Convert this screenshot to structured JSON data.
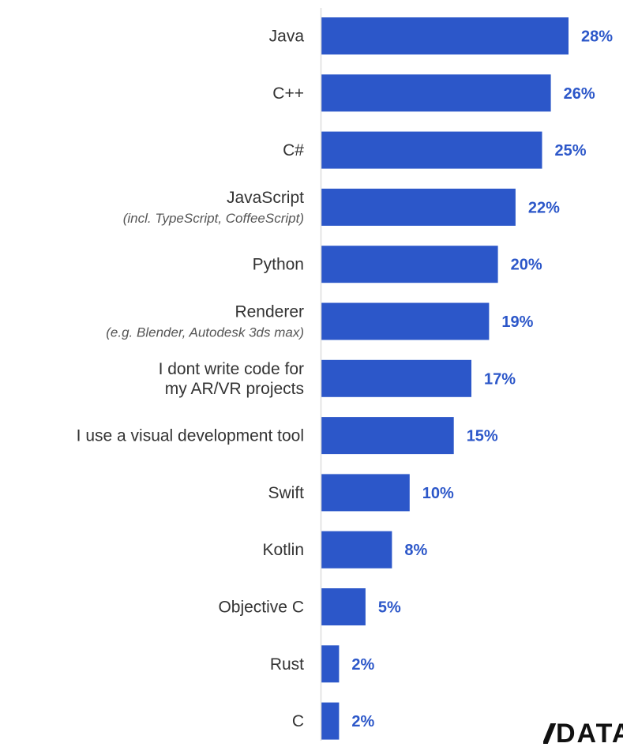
{
  "chart_data": {
    "type": "bar",
    "orientation": "horizontal",
    "categories": [
      "Java",
      "C++",
      "C#",
      "JavaScript",
      "Python",
      "Renderer",
      "I dont write code for\nmy AR/VR projects",
      "I use a visual development tool",
      "Swift",
      "Kotlin",
      "Objective C",
      "Rust",
      "C"
    ],
    "category_notes": [
      "",
      "",
      "",
      "(incl. TypeScript, CoffeeScript)",
      "",
      "(e.g. Blender, Autodesk 3ds max)",
      "",
      "",
      "",
      "",
      "",
      "",
      ""
    ],
    "values": [
      28,
      26,
      25,
      22,
      20,
      19,
      17,
      15,
      10,
      8,
      5,
      2,
      2
    ],
    "value_labels": [
      "28%",
      "26%",
      "25%",
      "22%",
      "20%",
      "19%",
      "17%",
      "15%",
      "10%",
      "8%",
      "5%",
      "2%",
      "2%"
    ],
    "xlim": [
      0,
      30
    ],
    "grid": false,
    "legend": "none",
    "colors": {
      "bar": "#2c57c9",
      "value_label": "#2c57c9",
      "axis": "#dddddd",
      "category_label": "#333333"
    }
  },
  "logo": {
    "text": "DATA"
  }
}
